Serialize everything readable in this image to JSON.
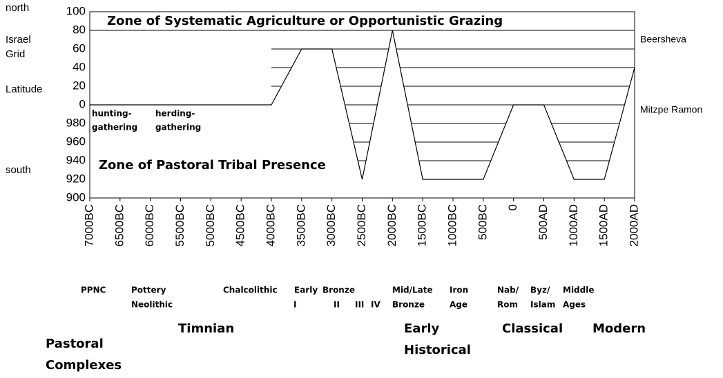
{
  "chart_data": {
    "type": "line",
    "title": "Zone of Systematic Agriculture or Opportunistic Grazing",
    "subtitle": "Zone of Pastoral Tribal Presence",
    "annotations": [
      "hunting-",
      "gathering",
      "herding-",
      "gathering"
    ],
    "left_labels": [
      "north",
      "Israel",
      "Grid",
      "Latitude",
      "south"
    ],
    "right_labels": [
      "Beersheva",
      "Mitzpe Ramon"
    ],
    "periods": [
      "PPNC",
      "Pottery",
      "Neolithic",
      "Chalcolithic",
      "Early",
      "Bronze",
      "I",
      "II",
      "III",
      "IV",
      "Mid/Late",
      "Bronze",
      "Iron",
      "Age",
      "Nab/",
      "Rom",
      "Byz/",
      "Islam",
      "Middle",
      "Ages"
    ],
    "groups": [
      "Timnian",
      "Early",
      "Historical",
      "Classical",
      "Modern",
      "Pastoral",
      "Complexes"
    ],
    "x": [
      -7000,
      -4000,
      -3500,
      -3000,
      -2500,
      -2000,
      -1500,
      -500,
      0,
      500,
      1000,
      1500,
      2000
    ],
    "series": [
      {
        "color": "#000000",
        "values": [
          0,
          0,
          60,
          60,
          -80,
          80,
          -80,
          -80,
          0,
          0,
          -80,
          -80,
          40
        ]
      }
    ],
    "xlim": [
      -7000,
      2000
    ],
    "xticks": [
      {
        "value": -7000,
        "label": "7000BC"
      },
      {
        "value": -6500,
        "label": "6500BC"
      },
      {
        "value": -6000,
        "label": "6000BC"
      },
      {
        "value": -5500,
        "label": "5500BC"
      },
      {
        "value": -5000,
        "label": "5000BC"
      },
      {
        "value": -4500,
        "label": "4500BC"
      },
      {
        "value": -4000,
        "label": "4000BC"
      },
      {
        "value": -3500,
        "label": "3500BC"
      },
      {
        "value": -3000,
        "label": "3000BC"
      },
      {
        "value": -2500,
        "label": "2500BC"
      },
      {
        "value": -2000,
        "label": "2000BC"
      },
      {
        "value": -1500,
        "label": "1500BC"
      },
      {
        "value": -1000,
        "label": "1000BC"
      },
      {
        "value": -500,
        "label": "500BC"
      },
      0,
      {
        "value": 500,
        "label": "500AD"
      },
      {
        "value": 1000,
        "label": "1000AD"
      },
      {
        "value": 1500,
        "label": "1500AD"
      },
      {
        "value": 2000,
        "label": "2000AD"
      }
    ],
    "ylim": [
      -100,
      100
    ],
    "yticks": [
      100,
      80,
      60,
      40,
      20,
      0,
      {
        "value": -20,
        "label": "980"
      },
      {
        "value": -40,
        "label": "960"
      },
      {
        "value": -60,
        "label": "940"
      },
      {
        "value": -80,
        "label": "920"
      },
      {
        "value": -100,
        "label": "900"
      }
    ],
    "grid": true
  }
}
